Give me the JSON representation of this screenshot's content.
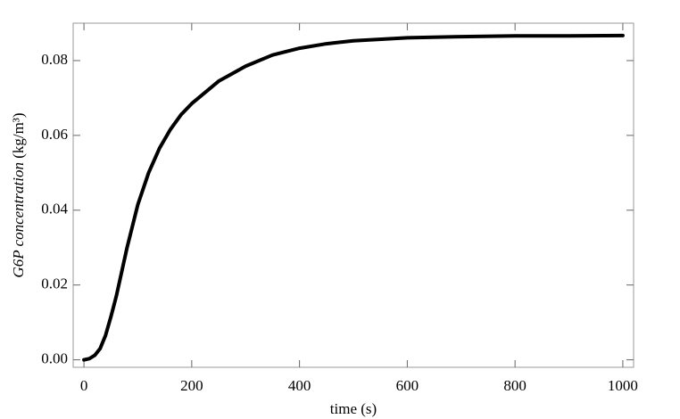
{
  "chart_data": {
    "type": "line",
    "xlabel": "time (s)",
    "ylabel": "G6P concentration",
    "ylabel_unit": "(kg/m³)",
    "x": [
      0,
      10,
      20,
      30,
      40,
      50,
      60,
      70,
      80,
      100,
      120,
      140,
      160,
      180,
      200,
      250,
      300,
      350,
      400,
      450,
      500,
      600,
      700,
      800,
      900,
      1000
    ],
    "series": [
      {
        "color": "#000000",
        "values": [
          0,
          0.0003,
          0.0012,
          0.003,
          0.0065,
          0.0115,
          0.017,
          0.0235,
          0.03,
          0.0415,
          0.05,
          0.0565,
          0.0615,
          0.0655,
          0.0685,
          0.0745,
          0.0785,
          0.0815,
          0.0833,
          0.0845,
          0.0853,
          0.0861,
          0.0864,
          0.0866,
          0.0866,
          0.0867
        ]
      }
    ],
    "xlim": [
      -20,
      1020
    ],
    "ylim": [
      -0.002,
      0.09
    ],
    "xticks": [
      0,
      200,
      400,
      600,
      800,
      1000
    ],
    "yticks": [
      {
        "value": 0,
        "label": "0.00"
      },
      {
        "value": 0.02,
        "label": "0.02"
      },
      {
        "value": 0.04,
        "label": "0.04"
      },
      {
        "value": 0.06,
        "label": "0.06"
      },
      {
        "value": 0.08,
        "label": "0.08"
      }
    ]
  }
}
